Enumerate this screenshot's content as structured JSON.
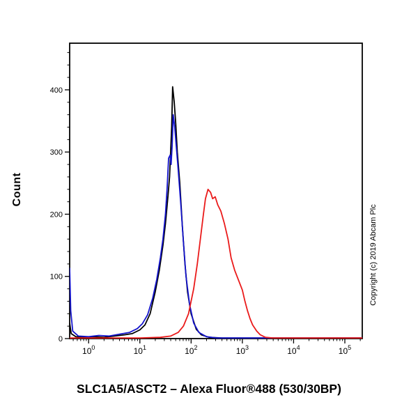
{
  "figure": {
    "title": "SLC1A5/ASCT2 – Alexa Fluor®488 (530/30BP)",
    "ylabel": "Count",
    "copyright": "Copyright (c) 2019 Abcam Plc"
  },
  "chart_data": {
    "type": "line",
    "subtype": "flow-cytometry-histogram-overlay",
    "title": "SLC1A5/ASCT2 – Alexa Fluor®488 (530/30BP)",
    "xlabel": "",
    "ylabel": "Count",
    "x_scale": "log10",
    "xlim_log": [
      -0.37,
      5.34
    ],
    "ylim": [
      0,
      475
    ],
    "x_ticks_exponents": [
      0,
      1,
      2,
      3,
      4,
      5
    ],
    "x_tick_labels": [
      "10^0",
      "10^1",
      "10^2",
      "10^3",
      "10^4",
      "10^5"
    ],
    "y_ticks": [
      0,
      100,
      200,
      300,
      400
    ],
    "y_minor_step": 20,
    "grid": false,
    "legend": "none",
    "axis_color": "#000000",
    "series": [
      {
        "name": "black",
        "color": "#000000",
        "points": [
          [
            -0.37,
            25
          ],
          [
            -0.34,
            8
          ],
          [
            -0.25,
            3
          ],
          [
            -0.1,
            2
          ],
          [
            0.1,
            3
          ],
          [
            0.3,
            2
          ],
          [
            0.5,
            4
          ],
          [
            0.7,
            6
          ],
          [
            0.85,
            8
          ],
          [
            1.0,
            14
          ],
          [
            1.1,
            22
          ],
          [
            1.2,
            40
          ],
          [
            1.3,
            75
          ],
          [
            1.38,
            110
          ],
          [
            1.45,
            150
          ],
          [
            1.5,
            185
          ],
          [
            1.55,
            230
          ],
          [
            1.58,
            260
          ],
          [
            1.6,
            300
          ],
          [
            1.62,
            340
          ],
          [
            1.64,
            405
          ],
          [
            1.67,
            380
          ],
          [
            1.7,
            345
          ],
          [
            1.73,
            300
          ],
          [
            1.78,
            250
          ],
          [
            1.83,
            180
          ],
          [
            1.88,
            120
          ],
          [
            1.93,
            75
          ],
          [
            2.0,
            40
          ],
          [
            2.1,
            15
          ],
          [
            2.2,
            6
          ],
          [
            2.35,
            2
          ],
          [
            2.6,
            1
          ],
          [
            3.0,
            1
          ],
          [
            3.5,
            1
          ],
          [
            4.0,
            1
          ],
          [
            4.5,
            1
          ],
          [
            5.0,
            1
          ],
          [
            5.34,
            1
          ]
        ]
      },
      {
        "name": "blue",
        "color": "#1414cc",
        "points": [
          [
            -0.37,
            113
          ],
          [
            -0.35,
            45
          ],
          [
            -0.31,
            12
          ],
          [
            -0.2,
            4
          ],
          [
            0.0,
            3
          ],
          [
            0.2,
            5
          ],
          [
            0.4,
            4
          ],
          [
            0.6,
            7
          ],
          [
            0.8,
            10
          ],
          [
            0.95,
            16
          ],
          [
            1.05,
            24
          ],
          [
            1.15,
            38
          ],
          [
            1.25,
            65
          ],
          [
            1.33,
            95
          ],
          [
            1.4,
            130
          ],
          [
            1.45,
            160
          ],
          [
            1.5,
            200
          ],
          [
            1.53,
            240
          ],
          [
            1.56,
            290
          ],
          [
            1.59,
            295
          ],
          [
            1.61,
            280
          ],
          [
            1.63,
            310
          ],
          [
            1.65,
            360
          ],
          [
            1.68,
            340
          ],
          [
            1.71,
            310
          ],
          [
            1.75,
            270
          ],
          [
            1.8,
            215
          ],
          [
            1.85,
            155
          ],
          [
            1.9,
            100
          ],
          [
            1.97,
            55
          ],
          [
            2.05,
            25
          ],
          [
            2.15,
            10
          ],
          [
            2.3,
            3
          ],
          [
            2.5,
            1
          ],
          [
            3.0,
            1
          ],
          [
            4.0,
            1
          ],
          [
            5.34,
            1
          ]
        ]
      },
      {
        "name": "red",
        "color": "#ea1a1a",
        "points": [
          [
            -0.37,
            1
          ],
          [
            0.5,
            1
          ],
          [
            1.0,
            1
          ],
          [
            1.4,
            2
          ],
          [
            1.6,
            4
          ],
          [
            1.75,
            10
          ],
          [
            1.85,
            20
          ],
          [
            1.95,
            40
          ],
          [
            2.05,
            80
          ],
          [
            2.12,
            120
          ],
          [
            2.18,
            160
          ],
          [
            2.24,
            200
          ],
          [
            2.28,
            225
          ],
          [
            2.33,
            240
          ],
          [
            2.38,
            235
          ],
          [
            2.42,
            225
          ],
          [
            2.47,
            228
          ],
          [
            2.52,
            215
          ],
          [
            2.58,
            205
          ],
          [
            2.65,
            185
          ],
          [
            2.72,
            160
          ],
          [
            2.78,
            130
          ],
          [
            2.85,
            110
          ],
          [
            2.92,
            95
          ],
          [
            3.0,
            78
          ],
          [
            3.05,
            60
          ],
          [
            3.1,
            45
          ],
          [
            3.15,
            32
          ],
          [
            3.2,
            22
          ],
          [
            3.28,
            12
          ],
          [
            3.35,
            6
          ],
          [
            3.45,
            2
          ],
          [
            3.6,
            1
          ],
          [
            4.0,
            1
          ],
          [
            4.5,
            1
          ],
          [
            5.0,
            1
          ],
          [
            5.34,
            1
          ]
        ]
      }
    ]
  }
}
